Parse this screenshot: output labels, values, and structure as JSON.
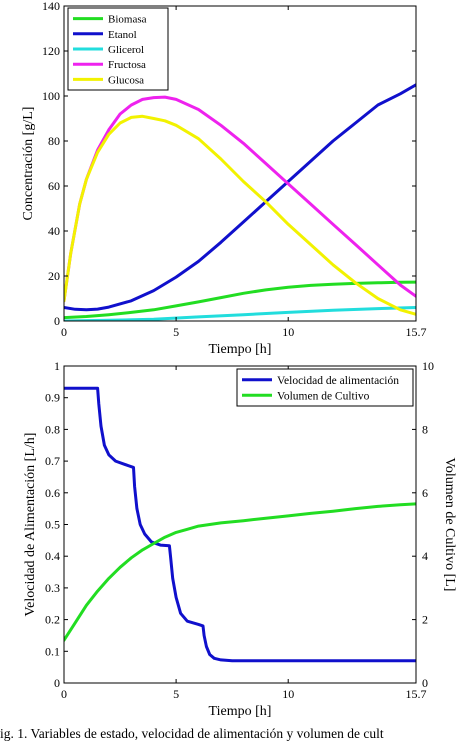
{
  "caption": "ig. 1. Variables de estado, velocidad de alimentación y volumen de cult",
  "chart_data": [
    {
      "type": "line",
      "xlabel": "Tiempo [h]",
      "ylabel": "Concentración [g/L]",
      "xlim": [
        0,
        15.7
      ],
      "ylim": [
        0,
        140
      ],
      "xticks": [
        0,
        5,
        10,
        15.7
      ],
      "xtick_labels": [
        "0",
        "5",
        "10",
        "15.7"
      ],
      "yticks": [
        0,
        20,
        40,
        60,
        80,
        100,
        120,
        140
      ],
      "ytick_labels": [
        "0",
        "20",
        "40",
        "60",
        "80",
        "100",
        "120",
        "140"
      ],
      "grid": false,
      "legend_position": "top-left",
      "series": [
        {
          "name": "Biomasa",
          "color": "#22dd22",
          "x": [
            0,
            1,
            2,
            3,
            4,
            5,
            6,
            7,
            8,
            9,
            10,
            11,
            12,
            13,
            14,
            15,
            15.7
          ],
          "y": [
            1.5,
            2,
            2.8,
            3.8,
            5,
            6.7,
            8.5,
            10.4,
            12.3,
            13.8,
            15,
            15.8,
            16.3,
            16.7,
            17,
            17.2,
            17.3
          ]
        },
        {
          "name": "Etanol",
          "color": "#1010cc",
          "x": [
            0,
            0.5,
            1,
            1.5,
            2,
            3,
            4,
            5,
            6,
            7,
            8,
            9,
            10,
            11,
            12,
            13,
            14,
            15,
            15.7
          ],
          "y": [
            6,
            5.2,
            5,
            5.3,
            6.2,
            9,
            13.5,
            19.5,
            26.5,
            35,
            44,
            53,
            62,
            71,
            80,
            88,
            96,
            101,
            105
          ]
        },
        {
          "name": "Glicerol",
          "color": "#22dddd",
          "x": [
            0,
            2,
            4,
            6,
            8,
            10,
            12,
            14,
            15.7
          ],
          "y": [
            0,
            0.3,
            0.8,
            1.8,
            2.8,
            3.8,
            4.8,
            5.5,
            6
          ]
        },
        {
          "name": "Fructosa",
          "color": "#ee22ee",
          "x": [
            0,
            0.3,
            0.7,
            1,
            1.5,
            2,
            2.5,
            3,
            3.5,
            4,
            4.5,
            5,
            6,
            7,
            8,
            9,
            10,
            11,
            12,
            13,
            14,
            15,
            15.7
          ],
          "y": [
            9,
            30,
            52,
            63,
            76,
            85,
            92,
            96,
            98.5,
            99.3,
            99.5,
            98.5,
            94,
            87,
            79,
            70,
            61,
            52,
            43,
            34,
            25,
            16,
            11
          ]
        },
        {
          "name": "Glucosa",
          "color": "#f2f200",
          "x": [
            0,
            0.3,
            0.7,
            1,
            1.5,
            2,
            2.5,
            3,
            3.5,
            4,
            4.5,
            5,
            6,
            7,
            8,
            9,
            10,
            11,
            12,
            13,
            14,
            15,
            15.7
          ],
          "y": [
            9,
            30,
            52,
            63,
            75,
            83,
            88,
            90.5,
            91,
            90,
            89,
            87,
            81,
            72,
            62,
            53,
            43,
            34,
            25,
            17,
            10,
            5,
            3
          ]
        }
      ]
    },
    {
      "type": "line",
      "xlabel": "Tiempo [h]",
      "ylabel": "Velocidad de Alimentación [L/h]",
      "y2label": "Volumen de Cultivo [L]",
      "xlim": [
        0,
        15.7
      ],
      "ylim": [
        0,
        1
      ],
      "y2lim": [
        0,
        10
      ],
      "xticks": [
        0,
        5,
        10,
        15.7
      ],
      "xtick_labels": [
        "0",
        "5",
        "10",
        "15.7"
      ],
      "yticks": [
        0,
        0.1,
        0.2,
        0.3,
        0.4,
        0.5,
        0.6,
        0.7,
        0.8,
        0.9,
        1
      ],
      "ytick_labels": [
        "0",
        "0.1",
        "0.2",
        "0.3",
        "0.4",
        "0.5",
        "0.6",
        "0.7",
        "0.8",
        "0.9",
        "1"
      ],
      "y2ticks": [
        0,
        2,
        4,
        6,
        8,
        10
      ],
      "y2tick_labels": [
        "0",
        "2",
        "4",
        "6",
        "8",
        "10"
      ],
      "grid": false,
      "legend_position": "top-right",
      "series": [
        {
          "name": "Velocidad de alimentación",
          "axis": "left",
          "color": "#1010cc",
          "x": [
            0,
            1.5,
            1.55,
            1.65,
            1.8,
            2.0,
            2.3,
            2.7,
            3.1,
            3.15,
            3.25,
            3.4,
            3.6,
            3.9,
            4.3,
            4.7,
            4.75,
            4.85,
            5.0,
            5.2,
            5.5,
            6.0,
            6.2,
            6.25,
            6.35,
            6.5,
            6.7,
            7.0,
            7.5,
            8,
            10,
            12,
            14,
            15.7
          ],
          "y": [
            0.93,
            0.93,
            0.88,
            0.81,
            0.75,
            0.72,
            0.7,
            0.69,
            0.68,
            0.62,
            0.55,
            0.5,
            0.47,
            0.445,
            0.435,
            0.433,
            0.4,
            0.33,
            0.27,
            0.22,
            0.195,
            0.185,
            0.18,
            0.15,
            0.115,
            0.09,
            0.078,
            0.073,
            0.07,
            0.07,
            0.07,
            0.07,
            0.07,
            0.07
          ]
        },
        {
          "name": "Volumen de Cultivo",
          "axis": "right",
          "color": "#22dd22",
          "x": [
            0,
            0.5,
            1,
            1.5,
            2,
            2.5,
            3,
            3.5,
            4,
            4.5,
            5,
            5.5,
            6,
            7,
            8,
            9,
            10,
            11,
            12,
            13,
            14,
            15,
            15.7
          ],
          "y": [
            1.35,
            1.9,
            2.45,
            2.9,
            3.3,
            3.65,
            3.95,
            4.2,
            4.4,
            4.6,
            4.75,
            4.85,
            4.95,
            5.05,
            5.12,
            5.2,
            5.27,
            5.35,
            5.42,
            5.5,
            5.57,
            5.62,
            5.65
          ]
        }
      ]
    }
  ]
}
